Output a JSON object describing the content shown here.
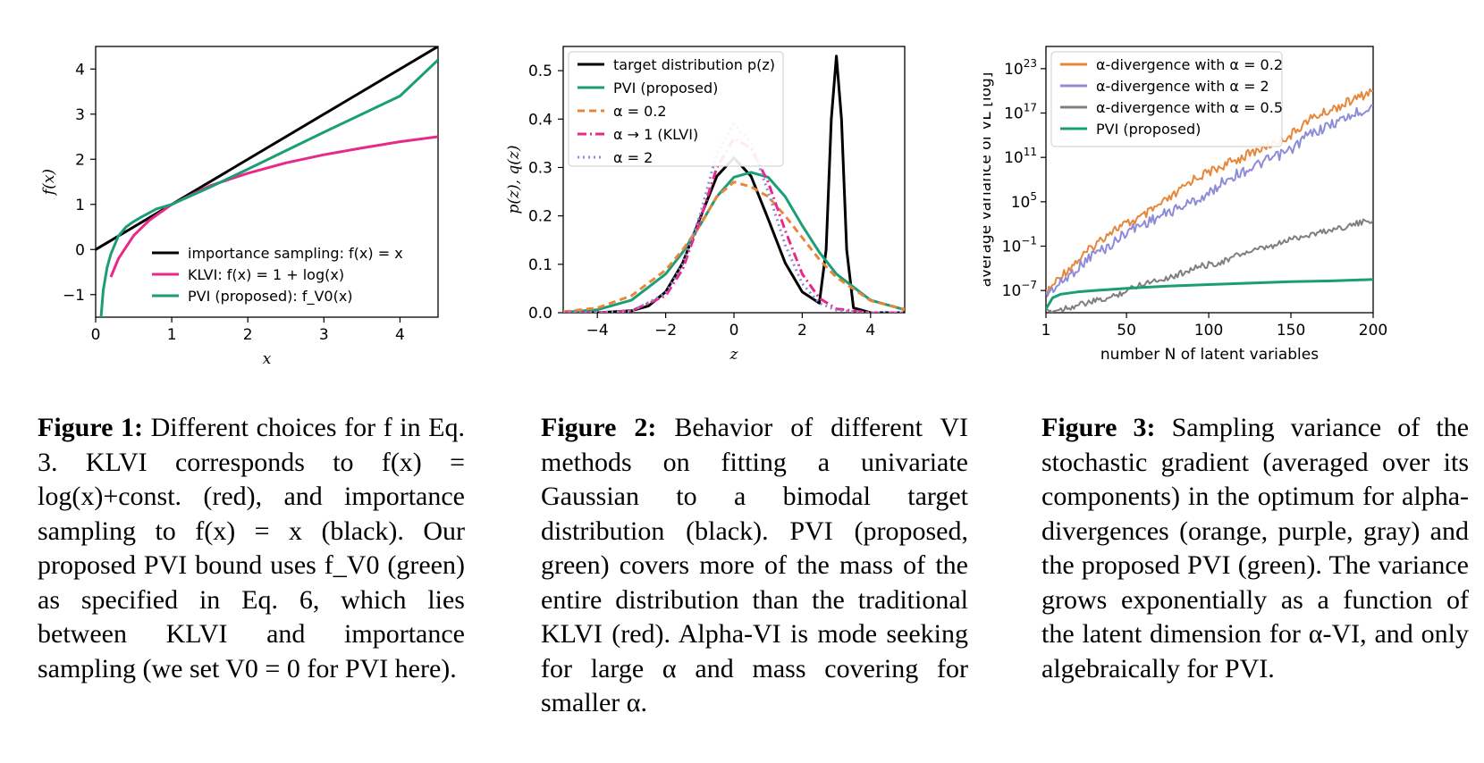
{
  "figure1": {
    "caption_label": "Figure 1:",
    "caption_text": "Different choices for f in Eq. 3. KLVI corresponds to f(x) = log(x)+const. (red), and importance sampling to f(x) = x (black). Our proposed PVI bound uses f_V0 (green) as specified in Eq. 6, which lies between KLVI and importance sampling (we set V0 = 0 for PVI here)."
  },
  "figure2": {
    "caption_label": "Figure 2:",
    "caption_text": "Behavior of different VI methods on fitting a univariate Gaussian to a bimodal target distribution (black). PVI (proposed, green) covers more of the mass of the entire distribution than the traditional KLVI (red). Alpha-VI is mode seeking for large α and mass covering for smaller α."
  },
  "figure3": {
    "caption_label": "Figure 3:",
    "caption_text": "Sampling variance of the stochastic gradient (averaged over its components) in the optimum for alpha-divergences (orange, purple, gray) and the proposed PVI (green). The variance grows exponentially as a function of the latent dimension for α-VI, and only algebraically for PVI."
  },
  "chart_data": [
    {
      "type": "line",
      "xlabel": "x",
      "ylabel": "f(x)",
      "xlim": [
        0,
        4.5
      ],
      "ylim": [
        -1.5,
        4.5
      ],
      "xticks": [
        "0",
        "1",
        "2",
        "3",
        "4"
      ],
      "yticks": [
        "−1",
        "0",
        "1",
        "2",
        "3",
        "4"
      ],
      "legend_position": "lower-right",
      "grid": false,
      "series": [
        {
          "name": "importance sampling: f(x) = x",
          "color": "#000000",
          "x": [
            0,
            4.5
          ],
          "y": [
            0,
            4.5
          ]
        },
        {
          "name": "KLVI: f(x) = 1 + log(x)",
          "color": "#e7298a",
          "x": [
            0.2,
            0.3,
            0.5,
            0.7,
            1.0,
            1.5,
            2.0,
            2.5,
            3.0,
            3.5,
            4.0,
            4.5
          ],
          "y": [
            -0.61,
            -0.2,
            0.31,
            0.64,
            1.0,
            1.41,
            1.69,
            1.92,
            2.1,
            2.25,
            2.39,
            2.5
          ]
        },
        {
          "name": "PVI (proposed): f_V0(x)",
          "color": "#1b9e77",
          "x": [
            0.07,
            0.1,
            0.15,
            0.2,
            0.3,
            0.4,
            0.5,
            0.6,
            0.8,
            1.0,
            1.5,
            2.0,
            3.0,
            4.0,
            4.5
          ],
          "y": [
            -1.5,
            -0.9,
            -0.4,
            -0.1,
            0.3,
            0.5,
            0.62,
            0.72,
            0.9,
            1.0,
            1.38,
            1.78,
            2.6,
            3.4,
            4.2
          ]
        }
      ]
    },
    {
      "type": "line",
      "xlabel": "z",
      "ylabel": "p(z), q(z)",
      "xlim": [
        -5,
        5
      ],
      "ylim": [
        0,
        0.55
      ],
      "xticks": [
        "−4",
        "−2",
        "0",
        "2",
        "4"
      ],
      "yticks": [
        "0.0",
        "0.1",
        "0.2",
        "0.3",
        "0.4",
        "0.5"
      ],
      "legend_position": "top-left",
      "grid": false,
      "series": [
        {
          "name": "target distribution p(z)",
          "color": "#000000",
          "dash": "solid",
          "x": [
            -5,
            -4,
            -3,
            -2.5,
            -2,
            -1.5,
            -1,
            -0.5,
            0,
            0.5,
            1,
            1.5,
            2,
            2.5,
            2.7,
            2.85,
            3.0,
            3.15,
            3.3,
            3.5,
            4,
            5
          ],
          "y": [
            0,
            0.0,
            0.004,
            0.014,
            0.043,
            0.103,
            0.194,
            0.282,
            0.32,
            0.282,
            0.194,
            0.103,
            0.043,
            0.02,
            0.13,
            0.4,
            0.53,
            0.4,
            0.13,
            0.01,
            0,
            0
          ]
        },
        {
          "name": "PVI (proposed)",
          "color": "#1b9e77",
          "dash": "solid",
          "x": [
            -5,
            -4,
            -3,
            -2,
            -1.5,
            -1,
            -0.5,
            0,
            0.5,
            1,
            1.5,
            2,
            2.5,
            3,
            4,
            5
          ],
          "y": [
            0.001,
            0.006,
            0.026,
            0.08,
            0.125,
            0.18,
            0.24,
            0.28,
            0.29,
            0.28,
            0.24,
            0.18,
            0.125,
            0.08,
            0.026,
            0.006
          ]
        },
        {
          "name": "α = 0.2",
          "color": "#e6873a",
          "dash": "8,5",
          "x": [
            -5,
            -4,
            -3,
            -2,
            -1.5,
            -1,
            -0.5,
            0,
            0.5,
            1,
            1.5,
            2,
            2.5,
            3,
            4,
            5
          ],
          "y": [
            0.002,
            0.01,
            0.035,
            0.088,
            0.13,
            0.18,
            0.24,
            0.27,
            0.26,
            0.24,
            0.2,
            0.155,
            0.11,
            0.073,
            0.025,
            0.007
          ]
        },
        {
          "name": "α → 1 (KLVI)",
          "color": "#e7298a",
          "dash": "10,4,2,4",
          "x": [
            -5,
            -4,
            -3,
            -2,
            -1.5,
            -1,
            -0.5,
            0,
            0.5,
            1,
            1.5,
            2,
            2.5,
            3,
            4,
            5
          ],
          "y": [
            0,
            0.0,
            0.004,
            0.035,
            0.09,
            0.19,
            0.3,
            0.36,
            0.34,
            0.27,
            0.17,
            0.08,
            0.03,
            0.008,
            0,
            0
          ]
        },
        {
          "name": "α = 2",
          "color": "#8e8cd8",
          "dash": "2,4",
          "x": [
            -5,
            -4,
            -3,
            -2,
            -1.5,
            -1,
            -0.5,
            0,
            0.5,
            1,
            1.5,
            2,
            2.5,
            3,
            4,
            5
          ],
          "y": [
            0,
            0.0,
            0.003,
            0.04,
            0.1,
            0.2,
            0.33,
            0.39,
            0.35,
            0.25,
            0.14,
            0.06,
            0.02,
            0.005,
            0,
            0
          ]
        }
      ]
    },
    {
      "type": "line",
      "xlabel": "number N of latent variables",
      "ylabel": "average variance of ∇L̃ [log]",
      "xlim": [
        1,
        200
      ],
      "ylim_log10": [
        -10,
        26
      ],
      "yscale": "log",
      "xticks": [
        "1",
        "50",
        "100",
        "150",
        "200"
      ],
      "yticks": [
        "10^23",
        "10^17",
        "10^11",
        "10^5",
        "10^−1",
        "10^−7"
      ],
      "legend_position": "top-left",
      "grid": false,
      "series": [
        {
          "name": "α-divergence with α = 0.2",
          "color": "#e6873a",
          "x": [
            1,
            10,
            20,
            30,
            40,
            50,
            60,
            70,
            80,
            90,
            100,
            110,
            120,
            130,
            140,
            150,
            160,
            170,
            180,
            190,
            200
          ],
          "log10_y": [
            -7.5,
            -5,
            -3,
            -1,
            1,
            2,
            3,
            4.5,
            6,
            8,
            9,
            10,
            11,
            12,
            13,
            14,
            16,
            17,
            18,
            19,
            20
          ]
        },
        {
          "name": "α-divergence with α = 2",
          "color": "#8e8cd8",
          "x": [
            1,
            10,
            20,
            30,
            40,
            50,
            60,
            70,
            80,
            90,
            100,
            110,
            120,
            130,
            140,
            150,
            160,
            170,
            180,
            190,
            200
          ],
          "log10_y": [
            -7.5,
            -6,
            -4,
            -2,
            -1,
            1,
            2,
            3,
            4,
            5,
            6,
            8,
            9,
            10,
            11,
            12,
            14,
            15,
            16,
            17,
            18
          ]
        },
        {
          "name": "α-divergence with α = 0.5",
          "color": "#7f7f7f",
          "x": [
            1,
            10,
            20,
            30,
            40,
            50,
            60,
            70,
            80,
            90,
            100,
            110,
            120,
            130,
            140,
            150,
            160,
            170,
            180,
            190,
            200
          ],
          "log10_y": [
            -10,
            -9.5,
            -9,
            -8.5,
            -8,
            -7,
            -6,
            -5.5,
            -5,
            -4,
            -3.5,
            -3,
            -2,
            -1.5,
            -1,
            0,
            0.5,
            1,
            1.5,
            2,
            2.5
          ]
        },
        {
          "name": "PVI (proposed)",
          "color": "#1b9e77",
          "x": [
            1,
            5,
            10,
            20,
            30,
            50,
            75,
            100,
            125,
            150,
            175,
            200
          ],
          "log10_y": [
            -9.5,
            -8,
            -7.5,
            -7.2,
            -7,
            -6.7,
            -6.4,
            -6.2,
            -6.0,
            -5.8,
            -5.7,
            -5.5
          ]
        }
      ]
    }
  ]
}
